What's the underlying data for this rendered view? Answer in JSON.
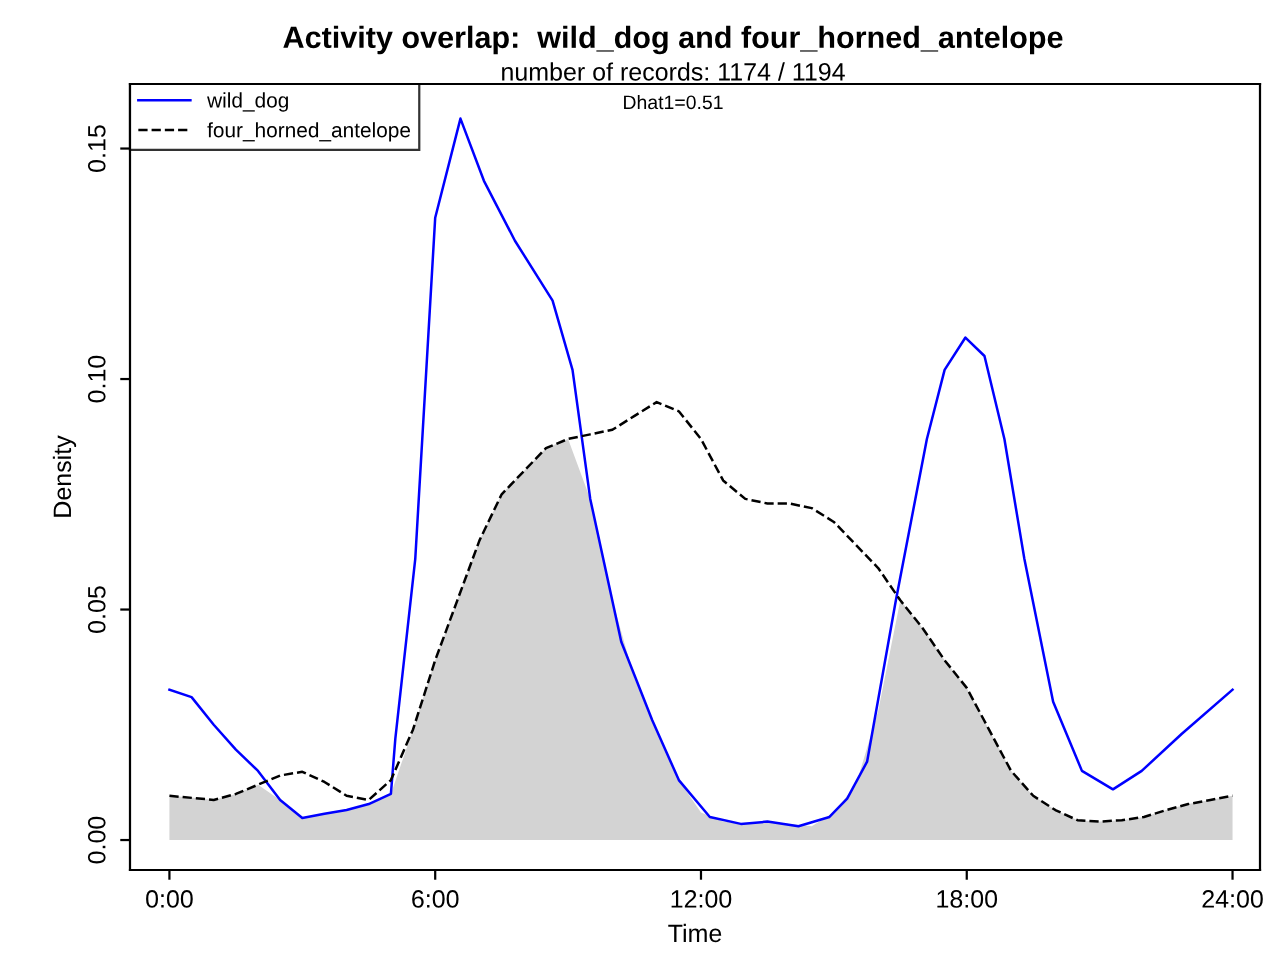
{
  "chart_data": {
    "type": "line",
    "title": "Activity overlap:  wild_dog and four_horned_antelope",
    "subtitle": "number of records: 1174 / 1194",
    "xlabel": "Time",
    "ylabel": "Density",
    "annotations": [
      "Dhat1=0.51"
    ],
    "series": [
      {
        "type": "area",
        "color": "#d3d3d3",
        "x": [
          0,
          0.5,
          1,
          1.5,
          2,
          2.5,
          3,
          3.5,
          4,
          4.5,
          5,
          5.5,
          6,
          6.5,
          7,
          7.5,
          8,
          8.5,
          9,
          9.5,
          10,
          10.5,
          11,
          11.5,
          12,
          12.5,
          13,
          13.5,
          14,
          14.5,
          15,
          15.5,
          16,
          16.5,
          17,
          17.5,
          18,
          18.5,
          19,
          19.5,
          20,
          20.5,
          21,
          21.5,
          22,
          22.5,
          23,
          23.5,
          24
        ],
        "values": [
          0.0096,
          0.0092,
          0.0087,
          0.01,
          0.012,
          0.0087,
          0.0048,
          0.0057,
          0.0065,
          0.0078,
          0.01,
          0.024,
          0.039,
          0.052,
          0.065,
          0.075,
          0.08,
          0.085,
          0.087,
          0.074,
          0.052,
          0.035,
          0.024,
          0.013,
          0.006,
          0.004,
          0.0035,
          0.004,
          0.0035,
          0.003,
          0.006,
          0.012,
          0.028,
          0.052,
          0.046,
          0.039,
          0.033,
          0.024,
          0.015,
          0.0096,
          0.0065,
          0.0043,
          0.004,
          0.0043,
          0.005,
          0.0065,
          0.0078,
          0.0087,
          0.0096
        ]
      },
      {
        "name": "wild_dog",
        "color": "#0000ff",
        "line_style": "solid",
        "x": [
          0,
          0.5,
          1,
          1.5,
          2,
          2.5,
          3,
          3.5,
          4,
          4.5,
          5,
          5.1,
          5.55,
          6.0,
          6.57,
          7.1,
          7.8,
          8.65,
          9.1,
          9.5,
          10.2,
          10.9,
          11.5,
          12.2,
          12.9,
          13.5,
          14.2,
          14.9,
          15.3,
          15.75,
          16.4,
          17.1,
          17.5,
          17.97,
          18.4,
          18.85,
          19.3,
          19.95,
          20.6,
          21.3,
          21.95,
          22.85,
          24
        ],
        "values": [
          0.0326,
          0.031,
          0.025,
          0.0196,
          0.015,
          0.0087,
          0.0048,
          0.0057,
          0.0065,
          0.0078,
          0.01,
          0.022,
          0.061,
          0.135,
          0.1565,
          0.143,
          0.13,
          0.117,
          0.102,
          0.074,
          0.043,
          0.026,
          0.013,
          0.005,
          0.0035,
          0.004,
          0.003,
          0.005,
          0.009,
          0.017,
          0.052,
          0.087,
          0.102,
          0.109,
          0.105,
          0.087,
          0.061,
          0.03,
          0.015,
          0.011,
          0.015,
          0.023,
          0.0326
        ]
      },
      {
        "name": "four_horned_antelope",
        "color": "#000000",
        "line_style": "dashed",
        "x": [
          0,
          1,
          1.5,
          2,
          2.5,
          3,
          3.5,
          4,
          4.5,
          5,
          5.5,
          6,
          6.5,
          7,
          7.5,
          8,
          8.5,
          9,
          9.5,
          10,
          10.5,
          11,
          11.5,
          12,
          12.5,
          13,
          13.5,
          14,
          14.5,
          15,
          15.5,
          16,
          16.5,
          17,
          17.5,
          18,
          18.5,
          19,
          19.5,
          20,
          20.5,
          21,
          21.5,
          22,
          22.5,
          23,
          23.5,
          24
        ],
        "values": [
          0.0096,
          0.0087,
          0.01,
          0.012,
          0.014,
          0.0148,
          0.0126,
          0.0096,
          0.0087,
          0.013,
          0.024,
          0.039,
          0.052,
          0.065,
          0.075,
          0.08,
          0.085,
          0.087,
          0.088,
          0.089,
          0.092,
          0.095,
          0.093,
          0.087,
          0.078,
          0.074,
          0.073,
          0.073,
          0.072,
          0.069,
          0.064,
          0.059,
          0.052,
          0.046,
          0.039,
          0.033,
          0.024,
          0.015,
          0.0096,
          0.0065,
          0.0043,
          0.004,
          0.0043,
          0.005,
          0.0065,
          0.0078,
          0.0087,
          0.0096
        ]
      }
    ],
    "xlim": [
      -0.89,
      24.62
    ],
    "ylim": [
      -0.0065,
      0.164
    ],
    "xticks": [
      {
        "value": 0,
        "label": "0:00"
      },
      {
        "value": 6,
        "label": "6:00"
      },
      {
        "value": 12,
        "label": "12:00"
      },
      {
        "value": 18,
        "label": "18:00"
      },
      {
        "value": 24,
        "label": "24:00"
      }
    ],
    "yticks": [
      {
        "value": 0,
        "label": "0.00"
      },
      {
        "value": 0.05,
        "label": "0.05"
      },
      {
        "value": 0.1,
        "label": "0.10"
      },
      {
        "value": 0.15,
        "label": "0.15"
      }
    ],
    "grid": false,
    "legend": "top left"
  }
}
